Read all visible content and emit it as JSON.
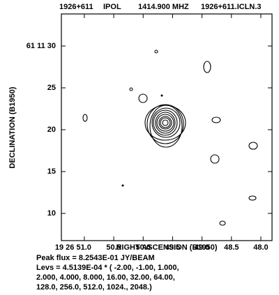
{
  "chart_data": {
    "type": "contour",
    "header": [
      "1926+611",
      "IPOL",
      "1414.900 MHZ",
      "1926+611.ICLN.3"
    ],
    "x_label": "RIGHT ASCENSION (B1950)",
    "y_label": "DECLINATION (B1950)",
    "xlim": [
      51.39,
      47.81
    ],
    "ylim": [
      6.75,
      33.83
    ],
    "xticks": [
      {
        "value": 51.0,
        "label": "19 26 51.0"
      },
      50.5,
      {
        "value": 50,
        "label": "50.0"
      },
      49.5,
      {
        "value": 49,
        "label": "49.0"
      },
      48.5,
      {
        "value": 48,
        "label": "48.0"
      }
    ],
    "yticks": [
      {
        "value": 30,
        "label": "61 11 30"
      },
      25,
      20,
      15,
      10
    ],
    "notes": [
      "Peak flux =  8.2543E-01 JY/BEAM",
      "Levs = 4.5139E-04 * (  -2.00, -1.00, 1.000,",
      "2.000, 4.000, 8.000, 16.00, 32.00, 64.00,",
      "128.0, 256.0, 512.0, 1024., 2048.)"
    ]
  }
}
